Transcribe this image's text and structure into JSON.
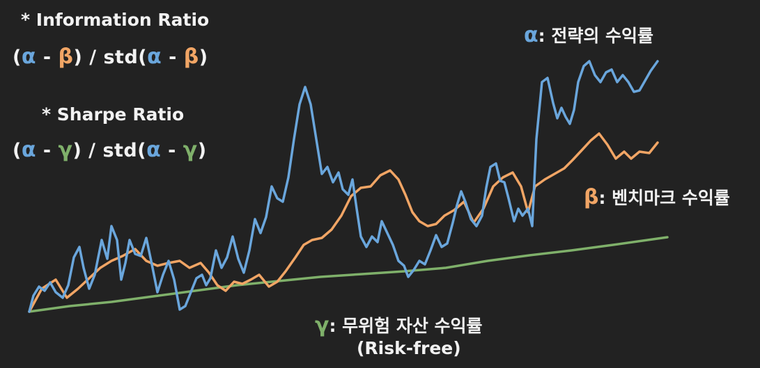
{
  "colors": {
    "background": "#222222",
    "text": "#f2f2f2",
    "alpha": "#6aa6dc",
    "beta": "#f1a565",
    "gamma": "#7fb06a"
  },
  "information_ratio": {
    "heading": "* Information Ratio",
    "open": "(",
    "a": "α",
    "minus": "-",
    "b": "β",
    "middle": ") / std(",
    "close": ")"
  },
  "sharpe_ratio": {
    "heading": "* Sharpe Ratio",
    "open": "(",
    "a": "α",
    "minus": "-",
    "g": "γ",
    "middle": ") / std(",
    "close": ")"
  },
  "legend": {
    "alpha_symbol": "α",
    "alpha_text": ": 전략의 수익률",
    "beta_symbol": "β",
    "beta_text": ": 벤치마크 수익률",
    "gamma_symbol": "γ",
    "gamma_text": ": 무위험 자산 수익률",
    "gamma_subtext": "(Risk-free)"
  }
}
